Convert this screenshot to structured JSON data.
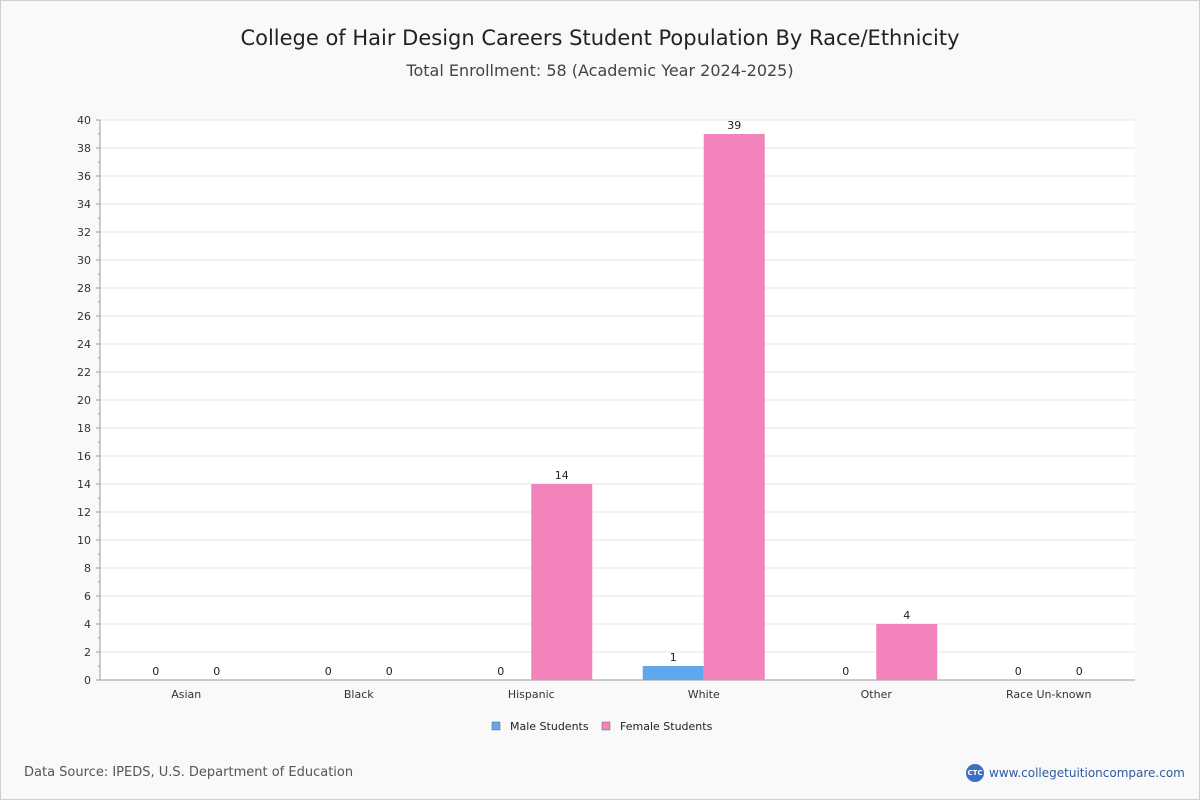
{
  "title": "College of Hair Design Careers Student Population By Race/Ethnicity",
  "subtitle": "Total Enrollment: 58 (Academic Year 2024-2025)",
  "source": "Data Source: IPEDS, U.S. Department of Education",
  "brand": {
    "logo_text": "CTC",
    "url_text": "www.collegetuitioncompare.com"
  },
  "colors": {
    "male": "#5ea8eb",
    "female": "#f283bb",
    "grid": "#e6e6e6",
    "axis": "#999999"
  },
  "chart_data": {
    "type": "bar",
    "categories": [
      "Asian",
      "Black",
      "Hispanic",
      "White",
      "Other",
      "Race Un-known"
    ],
    "series": [
      {
        "name": "Male Students",
        "values": [
          0,
          0,
          0,
          1,
          0,
          0
        ]
      },
      {
        "name": "Female Students",
        "values": [
          0,
          0,
          14,
          39,
          4,
          0
        ]
      }
    ],
    "ylim": [
      0,
      40
    ],
    "ytick_step": 2,
    "grid": true,
    "legend": "bottom-center",
    "xlabel": "",
    "ylabel": ""
  }
}
